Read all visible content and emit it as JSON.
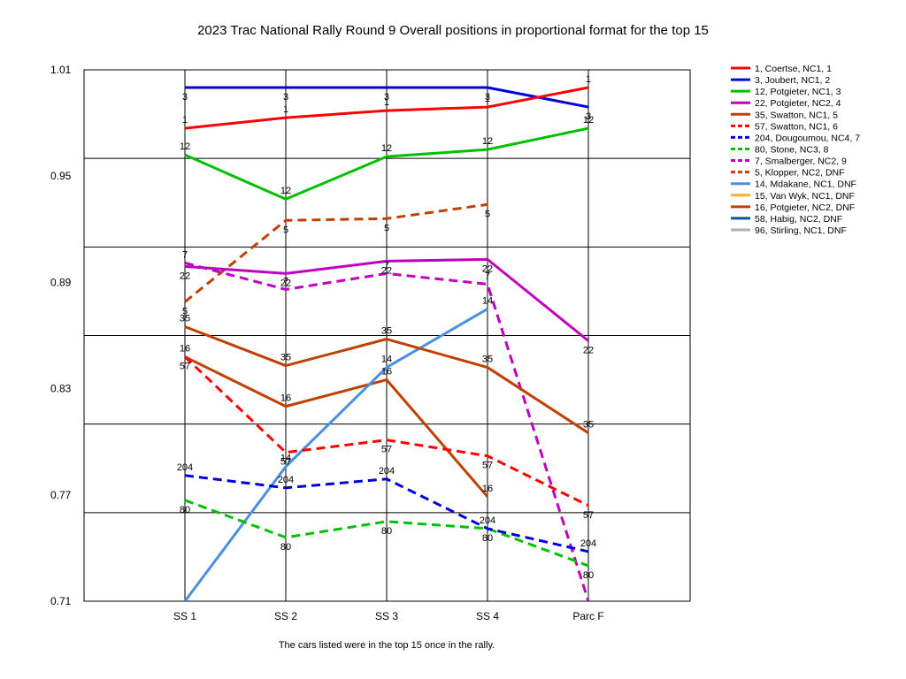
{
  "chart_data": {
    "type": "line",
    "title": "2023 Trac National Rally Round 9  Overall positions in proportional format for the top 15",
    "footnote": "The cars listed were in the top 15 once in the rally.",
    "xlabel": "",
    "ylabel": "",
    "categories": [
      "SS 1",
      "SS 2",
      "SS 3",
      "SS 4",
      "Parc F"
    ],
    "ylim": [
      0.71,
      1.01
    ],
    "yticks": [
      1.01,
      0.95,
      0.89,
      0.83,
      0.77,
      0.71
    ],
    "grid": true,
    "legend_placement": "right",
    "series": [
      {
        "name": "1, Coertse, NC1, 1",
        "label": "1",
        "color": "#ff0000",
        "dash": false,
        "values": [
          0.977,
          0.983,
          0.987,
          0.989,
          1.0
        ]
      },
      {
        "name": "3, Joubert, NC1, 2",
        "label": "3",
        "color": "#0000dd",
        "dash": false,
        "values": [
          1.0,
          1.0,
          1.0,
          1.0,
          0.989
        ]
      },
      {
        "name": "12, Potgieter, NC1, 3",
        "label": "12",
        "color": "#00c000",
        "dash": false,
        "values": [
          0.962,
          0.937,
          0.961,
          0.965,
          0.977
        ]
      },
      {
        "name": "22, Potgieter, NC2, 4",
        "label": "22",
        "color": "#c000c0",
        "dash": false,
        "values": [
          0.899,
          0.895,
          0.902,
          0.903,
          0.857
        ]
      },
      {
        "name": "35, Swatton, NC1, 5",
        "label": "35",
        "color": "#c04000",
        "dash": false,
        "values": [
          0.865,
          0.843,
          0.858,
          0.842,
          0.805
        ]
      },
      {
        "name": "57, Swatton, NC1, 6",
        "label": "57",
        "color": "#ff0000",
        "dash": true,
        "values": [
          0.848,
          0.794,
          0.801,
          0.792,
          0.764
        ]
      },
      {
        "name": "204, Dougoumou, NC4, 7",
        "label": "204",
        "color": "#0000dd",
        "dash": true,
        "values": [
          0.781,
          0.774,
          0.779,
          0.751,
          0.738
        ]
      },
      {
        "name": "80, Stone, NC3, 8",
        "label": "80",
        "color": "#00c000",
        "dash": true,
        "values": [
          0.767,
          0.746,
          0.755,
          0.751,
          0.73
        ]
      },
      {
        "name": "7, Smalberger, NC2, 9",
        "label": "7",
        "color": "#c000c0",
        "dash": true,
        "values": [
          0.901,
          0.886,
          0.895,
          0.889,
          0.71
        ]
      },
      {
        "name": "5, Klopper, NC2,  DNF",
        "label": "5",
        "color": "#c04000",
        "dash": true,
        "values": [
          0.879,
          0.925,
          0.926,
          0.934,
          null
        ]
      },
      {
        "name": "14, Mdakane, NC1,  DNF",
        "label": "14",
        "color": "#4a90e2",
        "dash": false,
        "values": [
          0.71,
          0.786,
          0.842,
          0.875,
          null
        ]
      },
      {
        "name": "15, Van Wyk, NC1,  DNF",
        "label": "15",
        "color": "#ffb020",
        "dash": false,
        "values": [
          null,
          null,
          null,
          null,
          null
        ]
      },
      {
        "name": "16, Potgieter, NC2,  DNF",
        "label": "16",
        "color": "#c04000",
        "dash": false,
        "values": [
          0.848,
          0.82,
          0.835,
          0.769,
          null
        ]
      },
      {
        "name": "58, Habig, NC2,  DNF",
        "label": "58",
        "color": "#005a9c",
        "dash": false,
        "values": [
          null,
          null,
          null,
          null,
          null
        ]
      },
      {
        "name": "96, Stirling, NC1,  DNF",
        "label": "96",
        "color": "#b0b0b0",
        "dash": false,
        "values": [
          null,
          null,
          null,
          null,
          null
        ]
      }
    ]
  }
}
